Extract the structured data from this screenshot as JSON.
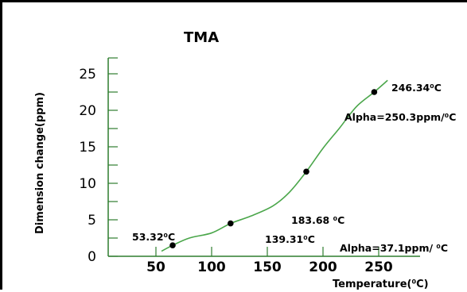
{
  "chart_data": {
    "type": "line",
    "title": "TMA",
    "xlabel": "Temperature(⁰C)",
    "ylabel": "Dimension change(ppm)",
    "xlim": [
      25,
      275
    ],
    "ylim": [
      0,
      28
    ],
    "x_ticks": [
      "50",
      "100",
      "150",
      "200",
      "250"
    ],
    "y_ticks": [
      "0",
      "5",
      "10",
      "15",
      "20",
      "25"
    ],
    "line_color": "#4aa64a",
    "point_color": "#000000",
    "series": [
      {
        "x": [
          55,
          65,
          80,
          100,
          117,
          135,
          155,
          170,
          185,
          200,
          215,
          230,
          246,
          258
        ],
        "y": [
          0.7,
          1.5,
          2.5,
          3.2,
          4.5,
          5.5,
          6.9,
          8.8,
          11.6,
          14.8,
          17.6,
          20.5,
          22.5,
          24.1
        ]
      }
    ],
    "points": [
      {
        "x": 65,
        "y": 1.5
      },
      {
        "x": 117,
        "y": 4.5
      },
      {
        "x": 185,
        "y": 11.6
      },
      {
        "x": 246,
        "y": 22.5
      }
    ],
    "annotations": [
      {
        "text": "53.32⁰C"
      },
      {
        "text": "139.31⁰C"
      },
      {
        "text": "183.68 ⁰C"
      },
      {
        "text": "246.34⁰C"
      },
      {
        "text": "Alpha=37.1ppm/ ⁰C"
      },
      {
        "text": "Alpha=250.3ppm/⁰C"
      }
    ]
  }
}
